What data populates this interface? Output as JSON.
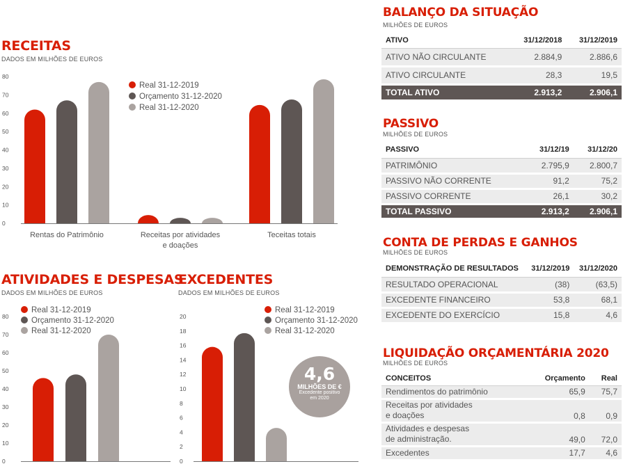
{
  "colors": {
    "red": "#d81e05",
    "dark": "#5e5654",
    "grey": "#aaa3a0"
  },
  "receitas": {
    "title": "RECEITAS",
    "subtitle": "DADOS EM MILHÕES DE EUROS"
  },
  "atividades": {
    "title": "ATIVIDADES E DESPESAS",
    "subtitle": "DADOS EM MILHÕES DE EUROS"
  },
  "excedentes": {
    "title": "EXCEDENTES",
    "subtitle": "DADOS EM MILHÕES DE EUROS",
    "bubble": {
      "value": "4,6",
      "unit": "MILHÕES DE €",
      "desc1": "Excedente positivo",
      "desc2": "em 2020"
    }
  },
  "chart_data": [
    {
      "type": "bar",
      "ylim": [
        0,
        80
      ],
      "yticks": [
        0,
        10,
        20,
        30,
        40,
        50,
        60,
        70,
        80
      ],
      "categories": [
        "Rentas do Patrimônio",
        "Receitas por atividades e doações",
        "Teceitas totais"
      ],
      "category_lines": [
        [
          "Rentas do Patrimônio"
        ],
        [
          "Receitas por atividades",
          "e doações"
        ],
        [
          "Teceitas totais"
        ]
      ],
      "series": [
        {
          "name": "Real 31-12-2019",
          "values": [
            62,
            4.5,
            64.5
          ]
        },
        {
          "name": "Orçamento 31-12-2020",
          "values": [
            67,
            3,
            67.5
          ]
        },
        {
          "name": "Real 31-12-2020",
          "values": [
            77,
            3,
            78.5
          ]
        }
      ]
    },
    {
      "type": "bar",
      "ylim": [
        0,
        80
      ],
      "yticks": [
        0,
        10,
        20,
        30,
        40,
        50,
        60,
        70,
        80
      ],
      "categories": [
        ""
      ],
      "series": [
        {
          "name": "Real 31-12-2019",
          "values": [
            46
          ]
        },
        {
          "name": "Orçamento 31-12-2020",
          "values": [
            48
          ]
        },
        {
          "name": "Real 31-12-2020",
          "values": [
            70
          ]
        }
      ]
    },
    {
      "type": "bar",
      "ylim": [
        0,
        20
      ],
      "yticks": [
        0,
        2,
        4,
        6,
        8,
        10,
        12,
        14,
        16,
        18,
        20
      ],
      "categories": [
        ""
      ],
      "series": [
        {
          "name": "Real 31-12-2019",
          "values": [
            15.8
          ]
        },
        {
          "name": "Orçamento 31-12-2020",
          "values": [
            17.7
          ]
        },
        {
          "name": "Real 31-12-2020",
          "values": [
            4.6
          ]
        }
      ]
    }
  ],
  "balanco": {
    "title": "BALANÇO DA SITUAÇÃO",
    "subtitle": "MILHÕES DE EUROS",
    "headers": [
      "ATIVO",
      "31/12/2018",
      "31/12/2019"
    ],
    "rows": [
      [
        "ATIVO NÃO CIRCULANTE",
        "2.884,9",
        "2.886,6"
      ],
      [
        "ATIVO CIRCULANTE",
        "28,3",
        "19,5"
      ]
    ],
    "total": [
      "TOTAL ATIVO",
      "2.913,2",
      "2.906,1"
    ]
  },
  "passivo": {
    "title": "PASSIVO",
    "subtitle": "MILHÕES DE EUROS",
    "headers": [
      "PASSIVO",
      "31/12/19",
      "31/12/20"
    ],
    "rows": [
      [
        "PATRIMÔNIO",
        "2.795,9",
        "2.800,7"
      ],
      [
        "PASSIVO NÃO CORRENTE",
        "91,2",
        "75,2"
      ],
      [
        "PASSIVO CORRENTE",
        "26,1",
        "30,2"
      ]
    ],
    "total": [
      "TOTAL PASSIVO",
      "2.913,2",
      "2.906,1"
    ]
  },
  "perdas": {
    "title": "CONTA DE PERDAS E GANHOS",
    "subtitle": "MILHÕES DE EUROS",
    "headers": [
      "DEMONSTRAÇÃO DE RESULTADOS",
      "31/12/2019",
      "31/12/2020"
    ],
    "rows": [
      [
        "RESULTADO OPERACIONAL",
        "(38)",
        "(63,5)"
      ],
      [
        "EXCEDENTE FINANCEIRO",
        "53,8",
        "68,1"
      ],
      [
        "EXCEDENTE DO EXERCÍCIO",
        "15,8",
        "4,6"
      ]
    ]
  },
  "liquidacao": {
    "title": "LIQUIDAÇÃO ORÇAMENTÁRIA 2020",
    "subtitle": "MILHÕES DE EUROS",
    "headers": [
      "CONCEITOS",
      "Orçamento",
      "Real"
    ],
    "rows": [
      {
        "l1": "Rendimentos do patrimônio",
        "l2": "",
        "a": "65,9",
        "b": "75,7"
      },
      {
        "l1": "Receitas por atividades",
        "l2": "e doações",
        "a": "0,8",
        "b": "0,9"
      },
      {
        "l1": "Atividades e despesas",
        "l2": "de administração.",
        "a": "49,0",
        "b": "72,0"
      },
      {
        "l1": "Excedentes",
        "l2": "",
        "a": "17,7",
        "b": "4,6"
      }
    ]
  }
}
